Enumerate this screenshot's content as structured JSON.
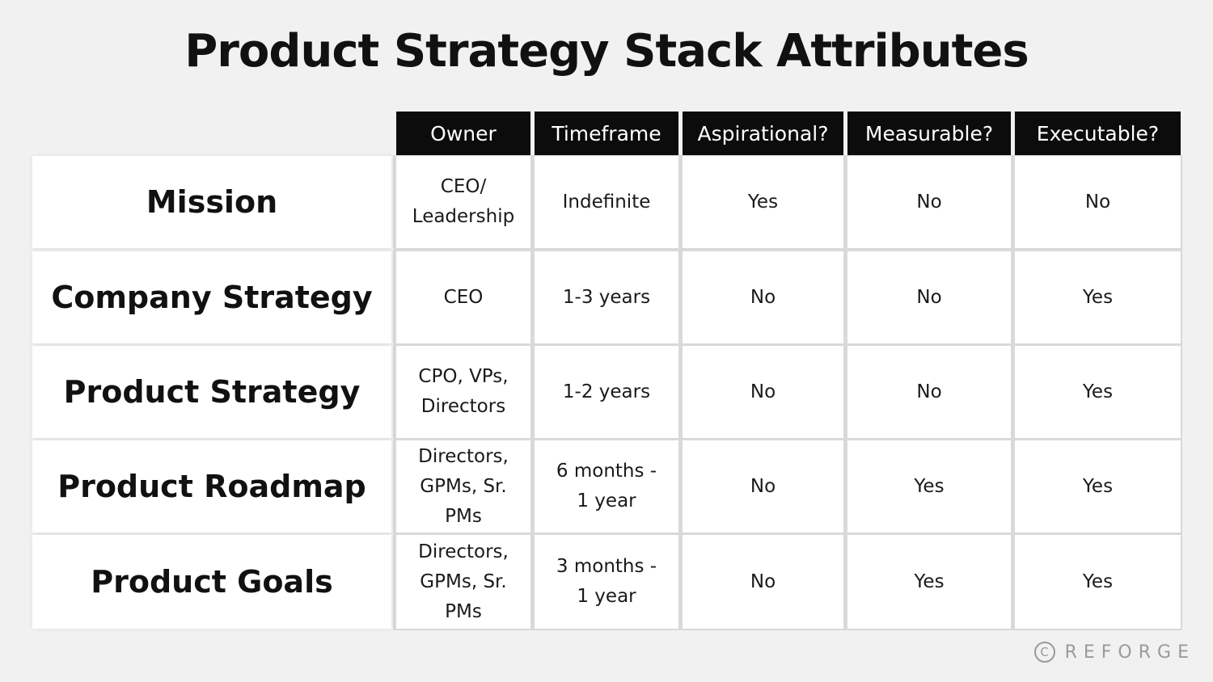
{
  "title": "Product Strategy Stack Attributes",
  "headers": [
    "Owner",
    "Timeframe",
    "Aspirational?",
    "Measurable?",
    "Executable?"
  ],
  "rows": [
    {
      "label": "Mission",
      "cells": [
        "CEO/\nLeadership",
        "Indefinite",
        "Yes",
        "No",
        "No"
      ]
    },
    {
      "label": "Company Strategy",
      "cells": [
        "CEO",
        "1-3 years",
        "No",
        "No",
        "Yes"
      ]
    },
    {
      "label": "Product Strategy",
      "cells": [
        "CPO, VPs,\nDirectors",
        "1-2 years",
        "No",
        "No",
        "Yes"
      ]
    },
    {
      "label": "Product Roadmap",
      "cells": [
        "Directors,\nGPMs, Sr.\nPMs",
        "6 months -\n1 year",
        "No",
        "Yes",
        "Yes"
      ]
    },
    {
      "label": "Product Goals",
      "cells": [
        "Directors,\nGPMs, Sr.\nPMs",
        "3 months -\n1 year",
        "No",
        "Yes",
        "Yes"
      ]
    }
  ],
  "logo": {
    "icon": "copyright-icon",
    "icon_glyph": "C",
    "text": "REFORGE"
  }
}
